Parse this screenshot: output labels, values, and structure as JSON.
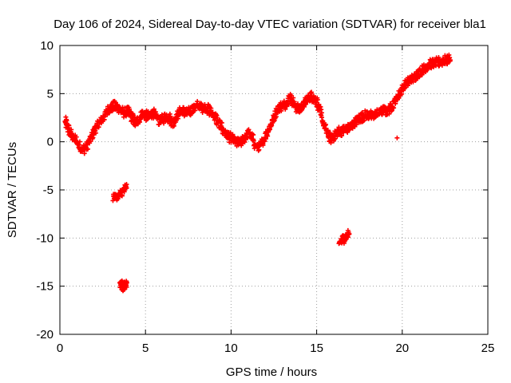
{
  "chart_data": {
    "type": "scatter",
    "title": "Day 106 of 2024, Sidereal Day-to-day VTEC variation (SDTVAR) for receiver bla1",
    "xlabel": "GPS time / hours",
    "ylabel": "SDTVAR / TECUs",
    "xlim": [
      0,
      25
    ],
    "ylim": [
      -20,
      10
    ],
    "xticks": [
      0,
      5,
      10,
      15,
      20,
      25
    ],
    "yticks": [
      -20,
      -15,
      -10,
      -5,
      0,
      5,
      10
    ],
    "xtick_labels": [
      "0",
      "5",
      "10",
      "15",
      "20",
      "25"
    ],
    "ytick_labels": [
      "-20",
      "-15",
      "-10",
      "-5",
      "0",
      "5",
      "10"
    ],
    "grid": true,
    "marker": "+",
    "series": [
      {
        "name": "SDTVAR",
        "color": "#ff0000",
        "segments": [
          {
            "x": [
              0.3,
              0.4,
              0.6,
              0.8,
              1.0,
              1.2,
              1.4,
              1.6,
              1.8,
              2.0,
              2.2,
              2.4,
              2.6,
              2.8,
              3.0,
              3.2,
              3.4,
              3.6,
              3.8,
              4.0,
              4.2,
              4.4,
              4.6,
              4.8,
              5.0,
              5.2,
              5.4,
              5.6,
              5.8,
              6.0,
              6.2,
              6.4,
              6.6,
              6.8,
              7.0,
              7.2,
              7.4,
              7.6,
              7.8,
              8.0,
              8.2,
              8.4,
              8.6,
              8.8,
              9.0,
              9.2,
              9.4,
              9.6,
              9.8,
              10.0,
              10.2,
              10.4,
              10.6,
              10.8,
              11.0,
              11.2,
              11.4,
              11.6,
              11.8,
              12.0,
              12.2,
              12.4,
              12.6,
              12.8,
              13.0,
              13.2,
              13.4,
              13.6,
              13.8,
              14.0,
              14.2,
              14.4,
              14.6,
              14.8,
              15.0,
              15.2,
              15.4,
              15.6,
              15.8,
              16.0,
              16.2,
              16.4,
              16.6,
              16.8,
              17.0,
              17.2,
              17.4,
              17.6,
              17.8,
              18.0,
              18.2,
              18.4,
              18.6,
              18.8,
              19.0,
              19.2,
              19.4,
              19.6,
              19.8,
              20.0,
              20.2,
              20.4,
              20.6,
              20.8,
              21.0,
              21.2,
              21.4,
              21.6,
              21.8,
              22.0,
              22.2,
              22.4,
              22.6,
              22.8
            ],
            "y": [
              2.0,
              1.5,
              0.8,
              0.3,
              -0.2,
              -0.8,
              -0.9,
              -0.5,
              0.3,
              1.0,
              1.6,
              2.0,
              2.6,
              3.2,
              3.5,
              3.6,
              3.4,
              3.0,
              2.9,
              3.0,
              2.4,
              1.8,
              2.2,
              2.8,
              2.6,
              2.5,
              2.9,
              2.5,
              2.1,
              2.2,
              2.5,
              2.3,
              1.8,
              2.5,
              3.0,
              3.0,
              2.9,
              3.0,
              3.4,
              3.6,
              3.5,
              3.4,
              3.3,
              3.0,
              2.6,
              2.0,
              1.4,
              0.9,
              0.5,
              0.2,
              0.0,
              -0.3,
              -0.1,
              0.3,
              0.8,
              0.4,
              -0.5,
              -0.7,
              -0.2,
              0.5,
              1.2,
              2.0,
              2.9,
              3.5,
              3.6,
              3.8,
              4.6,
              4.0,
              3.4,
              3.3,
              3.7,
              4.2,
              4.6,
              4.5,
              4.0,
              3.0,
              1.6,
              0.8,
              0.2,
              0.4,
              0.9,
              1.0,
              1.1,
              1.2,
              1.5,
              1.9,
              2.2,
              2.4,
              2.6,
              2.6,
              2.6,
              2.7,
              2.9,
              3.1,
              3.1,
              3.2,
              3.6,
              4.2,
              4.8,
              5.4,
              5.9,
              6.2,
              6.4,
              6.8,
              7.1,
              7.4,
              7.7,
              7.9,
              8.0,
              8.1,
              8.2,
              8.3,
              8.4,
              8.5
            ]
          },
          {
            "x": [
              3.1,
              3.3,
              3.5,
              3.7,
              3.9
            ],
            "y": [
              -5.8,
              -5.9,
              -5.6,
              -5.2,
              -4.8
            ]
          },
          {
            "x": [
              3.5,
              3.6,
              3.7,
              3.8,
              3.9
            ],
            "y": [
              -14.9,
              -15.0,
              -15.1,
              -15.0,
              -15.1
            ]
          },
          {
            "x": [
              16.3,
              16.5,
              16.7,
              16.9
            ],
            "y": [
              -10.6,
              -10.3,
              -10.0,
              -9.6
            ]
          },
          {
            "x": [
              19.7
            ],
            "y": [
              0.4
            ]
          }
        ]
      }
    ]
  }
}
